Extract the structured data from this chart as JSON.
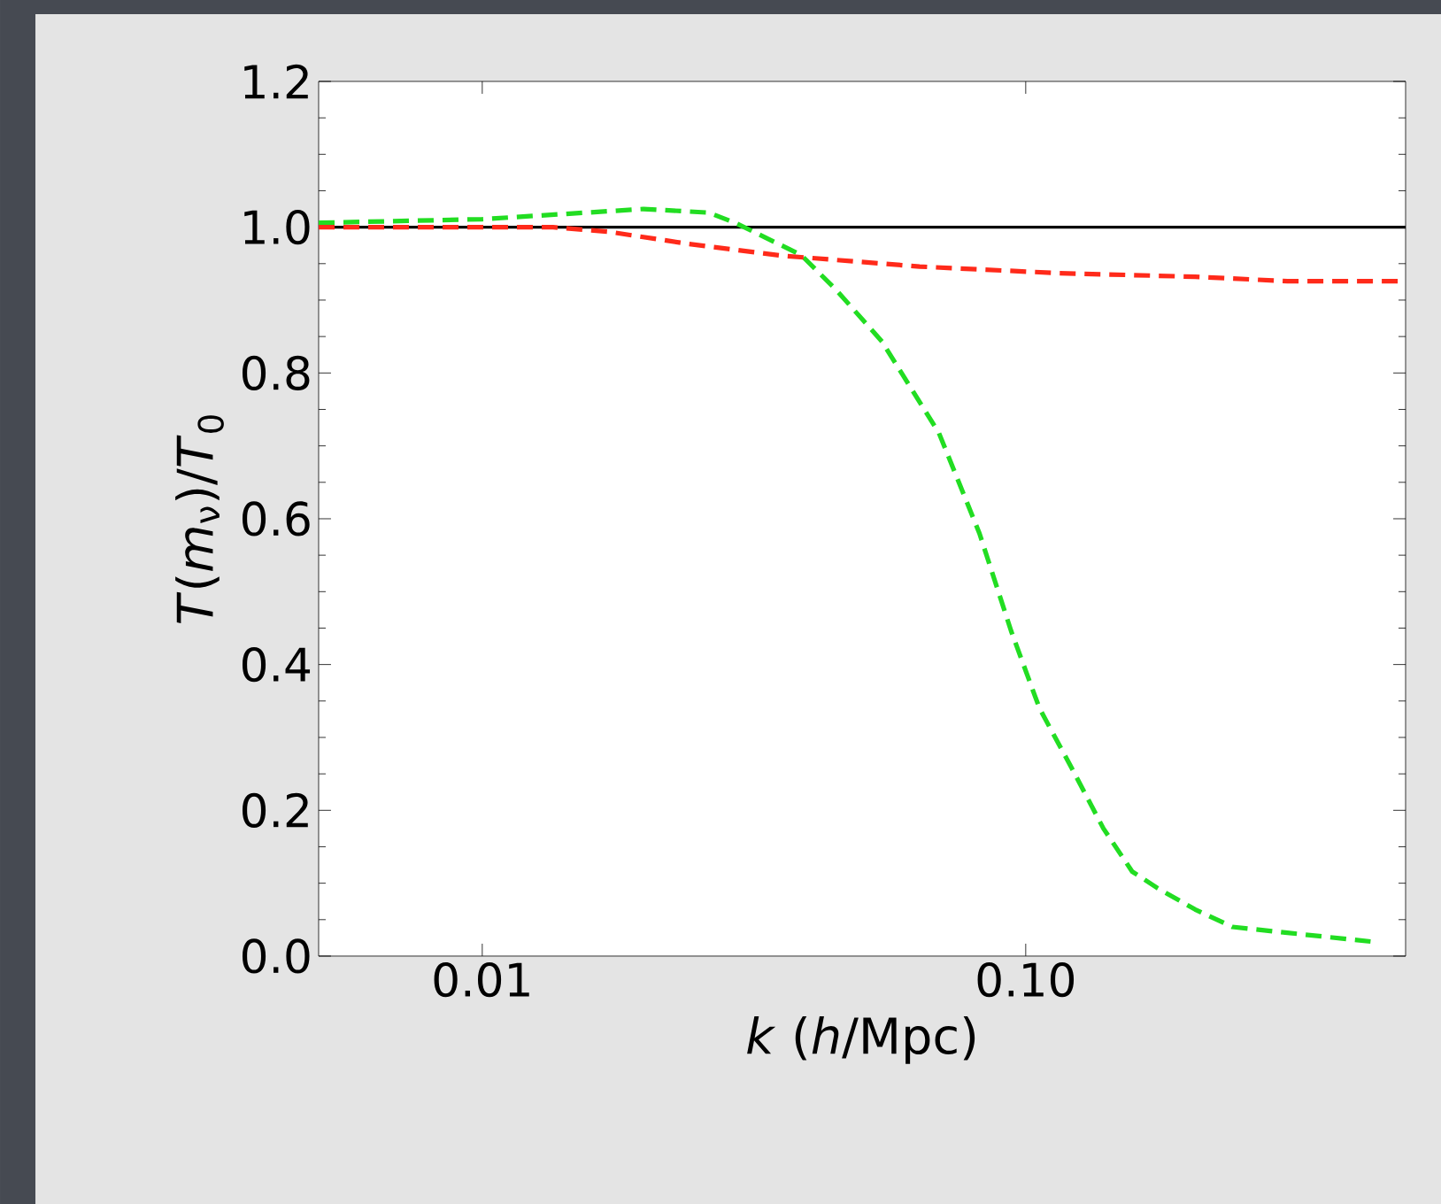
{
  "chart_data": {
    "type": "line",
    "xlabel": "*k* (*h*/Mpc)",
    "ylabel": "*T*(*m*$_{ν}$)/*T*$_{0}$",
    "log": "x",
    "xlim": [
      0.005,
      0.5
    ],
    "ylim": [
      0,
      1.2
    ],
    "xticks": [
      0.01,
      {
        "value": 0.1,
        "label": "0.10"
      }
    ],
    "yticks": [
      {
        "value": 0,
        "label": "0.0"
      },
      {
        "value": 0.2,
        "label": "0.2"
      },
      {
        "value": 0.4,
        "label": "0.4"
      },
      {
        "value": 0.6,
        "label": "0.6"
      },
      {
        "value": 0.8,
        "label": "0.8"
      },
      {
        "value": 1.0,
        "label": "1.0"
      },
      {
        "value": 1.2,
        "label": "1.2"
      }
    ],
    "ref_lines": [
      {
        "axis": "y",
        "value": 1.0,
        "color": "#000000",
        "line_style": "solid"
      }
    ],
    "series": [
      {
        "color": "#22dd22",
        "line_style": "dashed",
        "x": [
          0.005,
          0.01,
          0.0198,
          0.0261,
          0.0292,
          0.0386,
          0.0448,
          0.0544,
          0.0692,
          0.0822,
          0.094,
          0.106,
          0.1215,
          0.139,
          0.157,
          0.175,
          0.205,
          0.24,
          0.303,
          0.431
        ],
        "values": [
          1.006,
          1.011,
          1.025,
          1.02,
          1.006,
          0.962,
          0.914,
          0.843,
          0.718,
          0.58,
          0.446,
          0.34,
          0.258,
          0.175,
          0.116,
          0.093,
          0.064,
          0.04,
          0.032,
          0.02
        ]
      },
      {
        "color": "#ff2a1a",
        "line_style": "dashed",
        "x": [
          0.005,
          0.0135,
          0.017,
          0.024,
          0.0355,
          0.0638,
          0.1146,
          0.205,
          0.303,
          0.5
        ],
        "values": [
          1.0,
          1.0,
          0.994,
          0.977,
          0.961,
          0.946,
          0.937,
          0.932,
          0.926,
          0.926
        ]
      }
    ]
  }
}
